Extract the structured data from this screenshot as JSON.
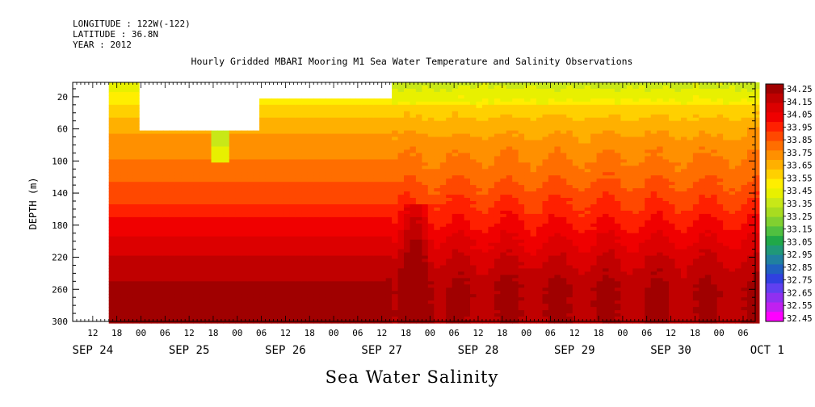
{
  "header": {
    "longitude": "LONGITUDE : 122W(-122)",
    "latitude": "LATITUDE : 36.8N",
    "year": "YEAR : 2012"
  },
  "chart_data": {
    "type": "heatmap",
    "title": "Hourly Gridded MBARI Mooring M1 Sea Water Temperature and Salinity Observations",
    "xlabel": "Sea Water Salinity",
    "ylabel": "DEPTH (m)",
    "x_hour_ticks": [
      "12",
      "18",
      "00",
      "06",
      "12",
      "18",
      "00",
      "06",
      "12",
      "18",
      "00",
      "06",
      "12",
      "18",
      "00",
      "06",
      "12",
      "18",
      "00",
      "06",
      "12",
      "18",
      "00",
      "06",
      "12",
      "18",
      "00",
      "06"
    ],
    "x_date_labels": [
      "SEP 24",
      "SEP 25",
      "SEP 26",
      "SEP 27",
      "SEP 28",
      "SEP 29",
      "SEP 30",
      "OCT  1"
    ],
    "y_ticks": [
      20,
      60,
      100,
      140,
      180,
      220,
      260,
      300
    ],
    "ylim": [
      300,
      2
    ],
    "colorbar": {
      "levels": [
        34.25,
        34.15,
        34.05,
        33.95,
        33.85,
        33.75,
        33.65,
        33.55,
        33.45,
        33.35,
        33.25,
        33.15,
        33.05,
        32.95,
        32.85,
        32.75,
        32.65,
        32.55,
        32.45
      ],
      "colors": [
        "#a00000",
        "#c00000",
        "#dc0000",
        "#f00000",
        "#ff2000",
        "#ff4800",
        "#ff6e00",
        "#ff9000",
        "#ffb000",
        "#ffd000",
        "#ffee00",
        "#e8f000",
        "#c8e818",
        "#a8dc20",
        "#80d030",
        "#50c040",
        "#20a848",
        "#209878",
        "#2080a0",
        "#2060c0",
        "#3040e0",
        "#6040f0",
        "#9030f0",
        "#c020f0",
        "#ff00ff"
      ]
    },
    "depth_profile": {
      "depth": [
        5,
        20,
        40,
        60,
        80,
        100,
        120,
        140,
        160,
        180,
        200,
        220,
        240,
        260,
        280,
        300
      ],
      "salinity": [
        33.2,
        33.3,
        33.42,
        33.52,
        33.6,
        33.66,
        33.72,
        33.8,
        33.88,
        33.96,
        34.05,
        34.13,
        34.2,
        34.25,
        34.25,
        34.24
      ]
    },
    "missing_data": "blank (no observations) at the start of SEP 24 and in the near-surface bins SEP 24 22h - SEP 27 14h"
  }
}
